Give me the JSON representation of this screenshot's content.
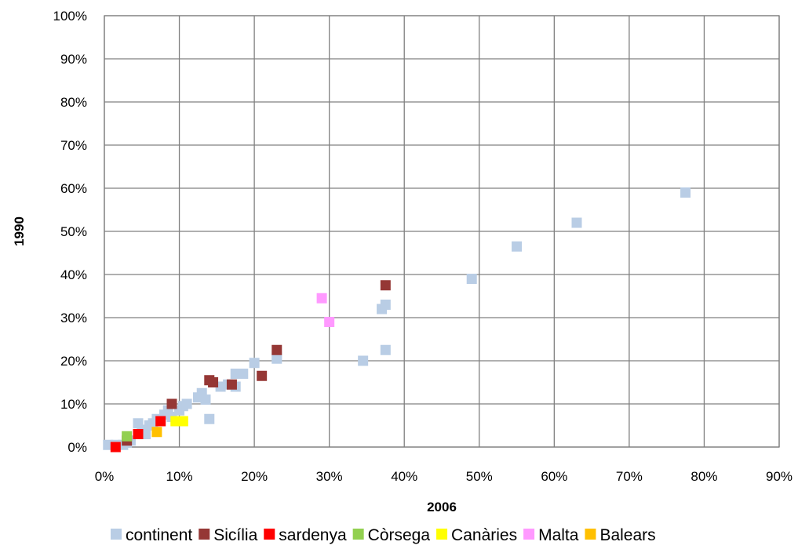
{
  "chart_data": {
    "type": "scatter",
    "title": "",
    "xlabel": "2006",
    "ylabel": "1990",
    "xlim": [
      0,
      0.9
    ],
    "ylim": [
      0,
      1.0
    ],
    "x_ticks": [
      "0%",
      "10%",
      "20%",
      "30%",
      "40%",
      "50%",
      "60%",
      "70%",
      "80%",
      "90%"
    ],
    "y_ticks": [
      "0%",
      "10%",
      "20%",
      "30%",
      "40%",
      "50%",
      "60%",
      "70%",
      "80%",
      "90%",
      "100%"
    ],
    "grid": true,
    "legend": "bottom",
    "series": [
      {
        "name": "continent",
        "color": "#b9cde5",
        "points": [
          [
            0.005,
            0.005
          ],
          [
            0.015,
            0.005
          ],
          [
            0.025,
            0.005
          ],
          [
            0.03,
            0.01
          ],
          [
            0.035,
            0.015
          ],
          [
            0.045,
            0.055
          ],
          [
            0.05,
            0.04
          ],
          [
            0.055,
            0.03
          ],
          [
            0.06,
            0.05
          ],
          [
            0.065,
            0.055
          ],
          [
            0.07,
            0.065
          ],
          [
            0.075,
            0.06
          ],
          [
            0.08,
            0.075
          ],
          [
            0.085,
            0.085
          ],
          [
            0.09,
            0.07
          ],
          [
            0.1,
            0.085
          ],
          [
            0.105,
            0.095
          ],
          [
            0.11,
            0.1
          ],
          [
            0.125,
            0.115
          ],
          [
            0.13,
            0.125
          ],
          [
            0.135,
            0.11
          ],
          [
            0.14,
            0.065
          ],
          [
            0.155,
            0.14
          ],
          [
            0.165,
            0.145
          ],
          [
            0.175,
            0.14
          ],
          [
            0.175,
            0.17
          ],
          [
            0.185,
            0.17
          ],
          [
            0.2,
            0.195
          ],
          [
            0.23,
            0.205
          ],
          [
            0.23,
            0.21
          ],
          [
            0.345,
            0.2
          ],
          [
            0.37,
            0.32
          ],
          [
            0.375,
            0.33
          ],
          [
            0.375,
            0.225
          ],
          [
            0.49,
            0.39
          ],
          [
            0.55,
            0.465
          ],
          [
            0.63,
            0.52
          ],
          [
            0.775,
            0.59
          ]
        ]
      },
      {
        "name": "Sicília",
        "color": "#953735",
        "points": [
          [
            0.03,
            0.015
          ],
          [
            0.09,
            0.1
          ],
          [
            0.14,
            0.155
          ],
          [
            0.145,
            0.15
          ],
          [
            0.17,
            0.145
          ],
          [
            0.21,
            0.165
          ],
          [
            0.23,
            0.225
          ],
          [
            0.375,
            0.375
          ]
        ]
      },
      {
        "name": "sardenya",
        "color": "#ff0000",
        "points": [
          [
            0.015,
            0.0
          ],
          [
            0.045,
            0.03
          ],
          [
            0.075,
            0.06
          ]
        ]
      },
      {
        "name": "Còrsega",
        "color": "#92d050",
        "points": [
          [
            0.03,
            0.025
          ]
        ]
      },
      {
        "name": "Canàries",
        "color": "#ffff00",
        "points": [
          [
            0.095,
            0.06
          ],
          [
            0.105,
            0.06
          ]
        ]
      },
      {
        "name": "Malta",
        "color": "#ff99ff",
        "points": [
          [
            0.29,
            0.345
          ],
          [
            0.3,
            0.29
          ]
        ]
      },
      {
        "name": "Balears",
        "color": "#ffc000",
        "points": [
          [
            0.07,
            0.035
          ]
        ]
      }
    ]
  }
}
